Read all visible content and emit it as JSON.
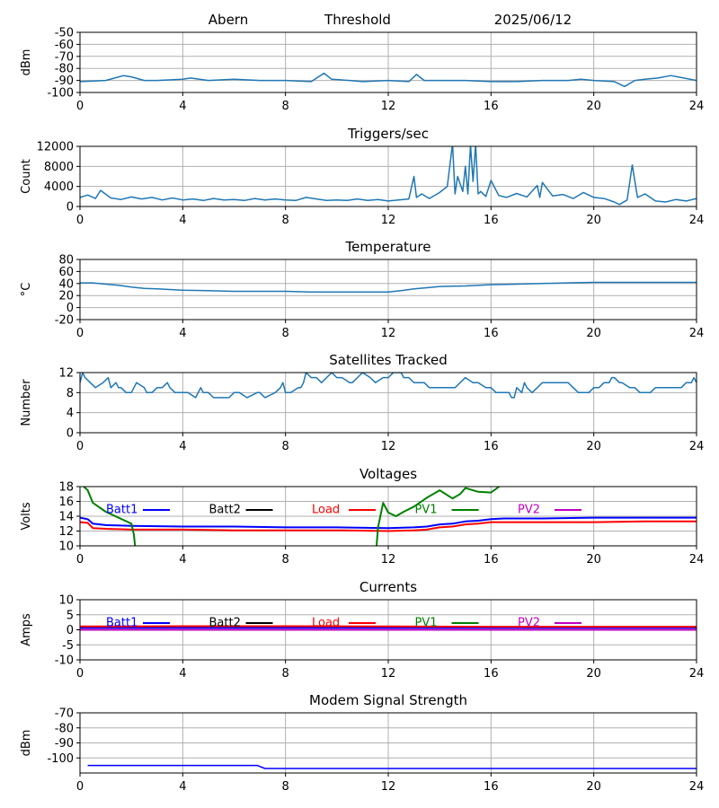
{
  "header": {
    "station": "Abern",
    "mode": "Threshold",
    "date": "2025/06/12"
  },
  "colors": {
    "series": "#1f77b4",
    "batt1": "#0000ff",
    "batt2": "#000000",
    "load": "#ff0000",
    "pv1": "#008000",
    "pv2": "#bf00bf",
    "grid": "#b0b0b0"
  },
  "x_axis": {
    "ticks": [
      0,
      4,
      8,
      12,
      16,
      20,
      24
    ],
    "xlim": [
      0,
      24
    ]
  },
  "legend": [
    {
      "key": "batt1",
      "label": "Batt1"
    },
    {
      "key": "batt2",
      "label": "Batt2"
    },
    {
      "key": "load",
      "label": "Load"
    },
    {
      "key": "pv1",
      "label": "PV1"
    },
    {
      "key": "pv2",
      "label": "PV2"
    }
  ],
  "chart_data": [
    {
      "type": "line",
      "title": "",
      "xlabel": "",
      "ylabel": "dBm",
      "ylim": [
        -100,
        -50
      ],
      "yticks": [
        -50,
        -60,
        -70,
        -80,
        -90,
        -100
      ],
      "grid": true,
      "series": [
        {
          "key": "series",
          "x": [
            0,
            1,
            1.7,
            2,
            2.5,
            3,
            4,
            4.3,
            5,
            6,
            7,
            8,
            9,
            9.5,
            9.8,
            10.5,
            11,
            12,
            12.8,
            13.1,
            13.4,
            14,
            15,
            16,
            17,
            18,
            19,
            19.5,
            20,
            20.8,
            21.2,
            21.6,
            22,
            22.5,
            23,
            23.5,
            24
          ],
          "y": [
            -91,
            -90,
            -86,
            -87,
            -90,
            -90,
            -89,
            -88,
            -90,
            -89,
            -90,
            -90,
            -91,
            -84,
            -89,
            -90,
            -91,
            -90,
            -91,
            -85,
            -90,
            -90,
            -90,
            -91,
            -91,
            -90,
            -90,
            -89,
            -90,
            -91,
            -95,
            -90,
            -89,
            -88,
            -86,
            -88,
            -90
          ]
        }
      ]
    },
    {
      "type": "line",
      "title": "Triggers/sec",
      "xlabel": "",
      "ylabel": "Count",
      "ylim": [
        0,
        12000
      ],
      "yticks": [
        0,
        4000,
        8000,
        12000
      ],
      "grid": true,
      "series": [
        {
          "key": "series",
          "x": [
            0,
            0.3,
            0.6,
            0.8,
            1.2,
            1.6,
            2,
            2.4,
            2.8,
            3.2,
            3.6,
            4,
            4.4,
            4.8,
            5.2,
            5.6,
            6,
            6.4,
            6.8,
            7.2,
            7.6,
            8,
            8.4,
            8.8,
            9.2,
            9.6,
            10,
            10.4,
            10.8,
            11.2,
            11.6,
            12,
            12.4,
            12.8,
            13,
            13.1,
            13.3,
            13.6,
            14,
            14.3,
            14.5,
            14.6,
            14.7,
            14.9,
            15,
            15.1,
            15.2,
            15.3,
            15.4,
            15.5,
            15.6,
            15.8,
            16,
            16.3,
            16.6,
            17,
            17.4,
            17.8,
            17.9,
            18,
            18.4,
            18.8,
            19.2,
            19.6,
            20,
            20.4,
            20.8,
            21,
            21.3,
            21.5,
            21.7,
            22,
            22.4,
            22.8,
            23.2,
            23.6,
            24
          ],
          "y": [
            1800,
            2300,
            1600,
            3200,
            1700,
            1400,
            1900,
            1500,
            1800,
            1300,
            1700,
            1300,
            1500,
            1200,
            1600,
            1300,
            1400,
            1200,
            1600,
            1300,
            1500,
            1300,
            1200,
            1800,
            1500,
            1200,
            1300,
            1200,
            1500,
            1200,
            1400,
            1100,
            1300,
            1500,
            6000,
            1800,
            2500,
            1600,
            2800,
            4000,
            12500,
            2500,
            6000,
            3000,
            8000,
            2500,
            12300,
            5000,
            12400,
            2500,
            3000,
            2000,
            5200,
            2200,
            1800,
            2600,
            1900,
            4200,
            1800,
            4800,
            2100,
            2400,
            1600,
            2800,
            1800,
            1600,
            900,
            400,
            1300,
            8300,
            1800,
            2500,
            1100,
            900,
            1400,
            1100,
            1600
          ]
        }
      ]
    },
    {
      "type": "line",
      "title": "Temperature",
      "xlabel": "",
      "ylabel": "°C",
      "ylim": [
        -20,
        80
      ],
      "yticks": [
        80,
        60,
        40,
        20,
        0,
        -20
      ],
      "grid": true,
      "series": [
        {
          "key": "series",
          "x": [
            0,
            0.5,
            1,
            1.5,
            2,
            2.5,
            3,
            3.5,
            4,
            5,
            6,
            7,
            8,
            9,
            10,
            11,
            12,
            12.5,
            13,
            13.5,
            14,
            15,
            16,
            17,
            18,
            19,
            20,
            21,
            22,
            23,
            24
          ],
          "y": [
            41,
            41,
            39,
            37,
            34,
            32,
            31,
            30,
            29,
            28,
            27,
            27,
            27,
            26,
            26,
            26,
            26,
            28,
            31,
            33,
            35,
            36,
            38,
            39,
            40,
            41,
            42,
            42,
            42,
            42,
            42
          ]
        }
      ]
    },
    {
      "type": "line",
      "title": "Satellites Tracked",
      "xlabel": "",
      "ylabel": "Number",
      "ylim": [
        0,
        12
      ],
      "yticks": [
        0,
        4,
        8,
        12
      ],
      "grid": true,
      "series": [
        {
          "key": "series",
          "x": [
            0,
            0.1,
            0.2,
            0.4,
            0.6,
            0.9,
            1.1,
            1.2,
            1.4,
            1.5,
            1.6,
            1.8,
            2.0,
            2.1,
            2.2,
            2.5,
            2.6,
            2.8,
            3.0,
            3.2,
            3.4,
            3.5,
            3.7,
            4.0,
            4.2,
            4.5,
            4.6,
            4.7,
            4.8,
            5.0,
            5.2,
            5.8,
            6.0,
            6.2,
            6.5,
            6.9,
            7.0,
            7.2,
            7.6,
            7.8,
            7.9,
            8.0,
            8.2,
            8.5,
            8.6,
            8.7,
            8.8,
            9.0,
            9.2,
            9.4,
            9.6,
            9.8,
            10.0,
            10.2,
            10.5,
            10.6,
            10.8,
            11.0,
            11.3,
            11.5,
            11.8,
            12.0,
            12.2,
            12.5,
            12.6,
            12.8,
            13.0,
            13.2,
            13.4,
            13.6,
            14.0,
            14.3,
            14.6,
            14.8,
            15.0,
            15.3,
            15.5,
            15.8,
            16.0,
            16.2,
            16.5,
            16.7,
            16.8,
            16.9,
            17.0,
            17.2,
            17.3,
            17.4,
            17.6,
            17.8,
            18.0,
            18.5,
            18.8,
            19.0,
            19.2,
            19.4,
            19.6,
            19.8,
            20.0,
            20.2,
            20.4,
            20.6,
            20.7,
            20.8,
            21.0,
            21.1,
            21.4,
            21.6,
            21.8,
            22.0,
            22.2,
            22.4,
            22.6,
            22.8,
            23.0,
            23.2,
            23.4,
            23.6,
            23.8,
            23.9,
            24
          ],
          "y": [
            10,
            12,
            11,
            10,
            9,
            10,
            11,
            9,
            10,
            9,
            9,
            8,
            8,
            9,
            10,
            9,
            8,
            8,
            9,
            9,
            10,
            9,
            8,
            8,
            8,
            7,
            8,
            9,
            8,
            8,
            7,
            7,
            8,
            8,
            7,
            8,
            8,
            7,
            8,
            9,
            10,
            8,
            8,
            9,
            9,
            10,
            12,
            11,
            11,
            10,
            11,
            12,
            11,
            11,
            10,
            10,
            11,
            12,
            11,
            10,
            11,
            11,
            12,
            12,
            11,
            11,
            10,
            10,
            10,
            9,
            9,
            9,
            9,
            10,
            11,
            10,
            10,
            9,
            9,
            8,
            8,
            8,
            7,
            7,
            9,
            8,
            10,
            9,
            8,
            9,
            10,
            10,
            10,
            10,
            9,
            8,
            8,
            8,
            9,
            9,
            10,
            10,
            11,
            11,
            10,
            10,
            9,
            9,
            8,
            8,
            8,
            9,
            9,
            9,
            9,
            9,
            9,
            10,
            10,
            11,
            10
          ]
        }
      ]
    },
    {
      "type": "line",
      "title": "Voltages",
      "xlabel": "",
      "ylabel": "Volts",
      "ylim": [
        10,
        18
      ],
      "yticks": [
        10,
        12,
        14,
        16,
        18
      ],
      "grid": true,
      "legend": "top",
      "series": [
        {
          "key": "batt1",
          "x": [
            0,
            0.3,
            0.5,
            1,
            2,
            4,
            6,
            8,
            10,
            12,
            13,
            13.5,
            14,
            14.5,
            15,
            15.5,
            16,
            16.5,
            18,
            20,
            22,
            24
          ],
          "y": [
            13.8,
            13.6,
            13.0,
            12.8,
            12.7,
            12.6,
            12.6,
            12.5,
            12.5,
            12.4,
            12.5,
            12.6,
            12.9,
            13.0,
            13.3,
            13.4,
            13.6,
            13.7,
            13.7,
            13.8,
            13.8,
            13.8
          ]
        },
        {
          "key": "load",
          "x": [
            0,
            0.3,
            0.5,
            1,
            2,
            4,
            6,
            8,
            10,
            12,
            13,
            13.5,
            14,
            14.5,
            15,
            15.5,
            16,
            16.5,
            18,
            20,
            22,
            24
          ],
          "y": [
            13.2,
            13.1,
            12.4,
            12.3,
            12.2,
            12.2,
            12.1,
            12.1,
            12.1,
            12.0,
            12.1,
            12.2,
            12.5,
            12.6,
            12.9,
            13.0,
            13.2,
            13.2,
            13.2,
            13.2,
            13.3,
            13.3
          ]
        },
        {
          "key": "pv1",
          "x": [
            0,
            0.3,
            0.5,
            1,
            1.5,
            2,
            2.1,
            2.2,
            11.5,
            11.6,
            11.8,
            12,
            12.3,
            12.6,
            13,
            13.5,
            14,
            14.5,
            14.8,
            15,
            15.5,
            16,
            16.2,
            16.5
          ],
          "y": [
            18.5,
            17.5,
            15.8,
            14.6,
            13.8,
            13.0,
            11.5,
            8.0,
            8.0,
            12.5,
            15.8,
            14.5,
            14.0,
            14.6,
            15.3,
            16.5,
            17.5,
            16.4,
            17.0,
            17.8,
            17.3,
            17.2,
            17.7,
            18.5
          ]
        }
      ]
    },
    {
      "type": "line",
      "title": "Currents",
      "xlabel": "",
      "ylabel": "Amps",
      "ylim": [
        -10,
        10
      ],
      "yticks": [
        10,
        5,
        0,
        -5,
        -10
      ],
      "grid": true,
      "legend": "top",
      "series": [
        {
          "key": "batt1",
          "x": [
            0,
            24
          ],
          "y": [
            0.7,
            0.7
          ]
        },
        {
          "key": "load",
          "x": [
            0,
            4,
            8,
            12,
            16,
            20,
            24
          ],
          "y": [
            1.1,
            1.2,
            1.2,
            1.1,
            1.0,
            1.0,
            1.0
          ]
        },
        {
          "key": "pv2",
          "x": [
            0,
            24
          ],
          "y": [
            0,
            0
          ]
        }
      ]
    },
    {
      "type": "line",
      "title": "Modem Signal Strength",
      "xlabel": "",
      "ylabel": "dBm",
      "ylim": [
        -110,
        -70
      ],
      "yticks": [
        -70,
        -80,
        -90,
        -100
      ],
      "grid": true,
      "series": [
        {
          "key": "batt1",
          "x": [
            0.3,
            6.9,
            7.2,
            24
          ],
          "y": [
            -105,
            -105,
            -107,
            -107
          ]
        }
      ]
    }
  ]
}
